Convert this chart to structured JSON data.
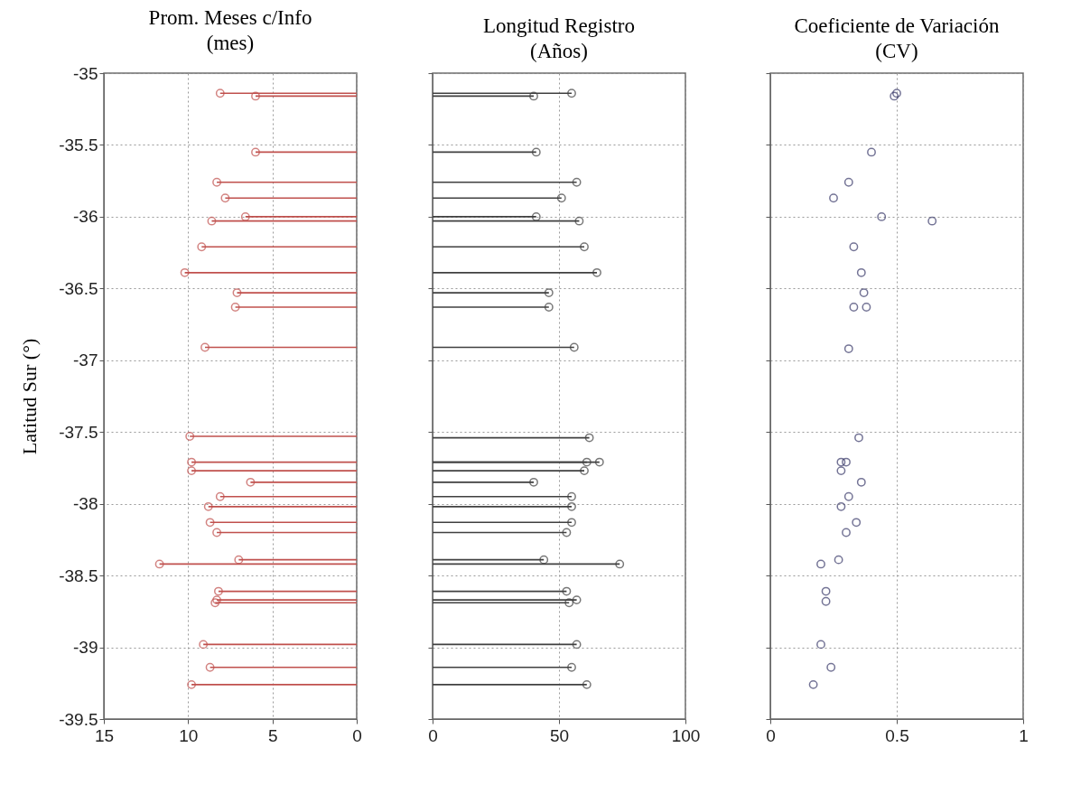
{
  "chart_data": [
    {
      "type": "lollipop",
      "orientation": "horizontal",
      "title": "Prom. Meses c/Info\n(mes)",
      "ylabel": "Latitud Sur (°)",
      "color": "#c0504d",
      "marker": "circle",
      "grid": true,
      "x": [
        -35.14,
        -35.16,
        -35.55,
        -35.76,
        -35.87,
        -36.0,
        -36.03,
        -36.21,
        -36.39,
        -36.53,
        -36.63,
        -36.91,
        -37.53,
        -37.71,
        -37.77,
        -37.85,
        -37.95,
        -38.02,
        -38.13,
        -38.2,
        -38.39,
        -38.42,
        -38.61,
        -38.67,
        -38.69,
        -38.98,
        -39.14,
        -39.26
      ],
      "values": [
        8.1,
        6,
        6,
        8.3,
        7.8,
        6.6,
        8.6,
        9.2,
        10.2,
        7.1,
        7.2,
        9.0,
        9.9,
        9.8,
        9.8,
        6.3,
        8.1,
        8.8,
        8.7,
        8.3,
        7.0,
        11.7,
        8.2,
        8.3,
        8.4,
        9.1,
        8.7,
        9.8
      ],
      "xlim": [
        15,
        0
      ],
      "xticks": [
        15,
        10,
        5,
        0
      ],
      "ylim": [
        -39.5,
        -35
      ],
      "yticks": [
        -39.5,
        -39,
        -38.5,
        -38,
        -37.5,
        -37,
        -36.5,
        -36,
        -35.5,
        -35
      ]
    },
    {
      "type": "lollipop",
      "orientation": "horizontal",
      "title": "Longitud Registro\n(Años)",
      "color": "#404040",
      "marker": "circle",
      "grid": true,
      "tick_labels": "x",
      "x": [
        -35.14,
        -35.16,
        -35.55,
        -35.76,
        -35.87,
        -36.0,
        -36.03,
        -36.21,
        -36.39,
        -36.53,
        -36.63,
        -36.91,
        -37.54,
        -37.71,
        -37.71,
        -37.77,
        -37.85,
        -37.95,
        -38.02,
        -38.13,
        -38.2,
        -38.39,
        -38.42,
        -38.61,
        -38.67,
        -38.69,
        -38.98,
        -39.14,
        -39.26
      ],
      "values": [
        55,
        40,
        41,
        57,
        51,
        41,
        58,
        60,
        65,
        46,
        46,
        56,
        62,
        66,
        61,
        60,
        40,
        55,
        55,
        55,
        53,
        44,
        74,
        53,
        57,
        54,
        57,
        55,
        61
      ],
      "xlim": [
        0,
        100
      ],
      "xticks": [
        0,
        50,
        100
      ],
      "ylim": [
        -39.5,
        -35
      ],
      "yticks": [
        -39.5,
        -39,
        -38.5,
        -38,
        -37.5,
        -37,
        -36.5,
        -36,
        -35.5,
        -35
      ]
    },
    {
      "type": "scatter",
      "orientation": "horizontal",
      "title": "Coeficiente de Variación\n(CV)",
      "color": "#3a3a6a",
      "marker": "circle",
      "grid": true,
      "tick_labels": "x",
      "x": [
        -35.14,
        -35.16,
        -35.55,
        -35.76,
        -35.87,
        -36.0,
        -36.03,
        -36.21,
        -36.39,
        -36.53,
        -36.63,
        -36.63,
        -36.92,
        -37.54,
        -37.71,
        -37.71,
        -37.77,
        -37.85,
        -37.95,
        -38.02,
        -38.13,
        -38.2,
        -38.39,
        -38.42,
        -38.61,
        -38.68,
        -38.98,
        -39.14,
        -39.26
      ],
      "values": [
        0.5,
        0.49,
        0.4,
        0.31,
        0.25,
        0.44,
        0.64,
        0.33,
        0.36,
        0.37,
        0.33,
        0.38,
        0.31,
        0.35,
        0.28,
        0.3,
        0.28,
        0.36,
        0.31,
        0.28,
        0.34,
        0.3,
        0.27,
        0.2,
        0.22,
        0.22,
        0.2,
        0.24,
        0.17
      ],
      "xlim": [
        0,
        1
      ],
      "xticks": [
        0,
        0.5,
        1
      ],
      "ylim": [
        -39.5,
        -35
      ],
      "yticks": [
        -39.5,
        -39,
        -38.5,
        -38,
        -37.5,
        -37,
        -36.5,
        -36,
        -35.5,
        -35
      ]
    }
  ]
}
